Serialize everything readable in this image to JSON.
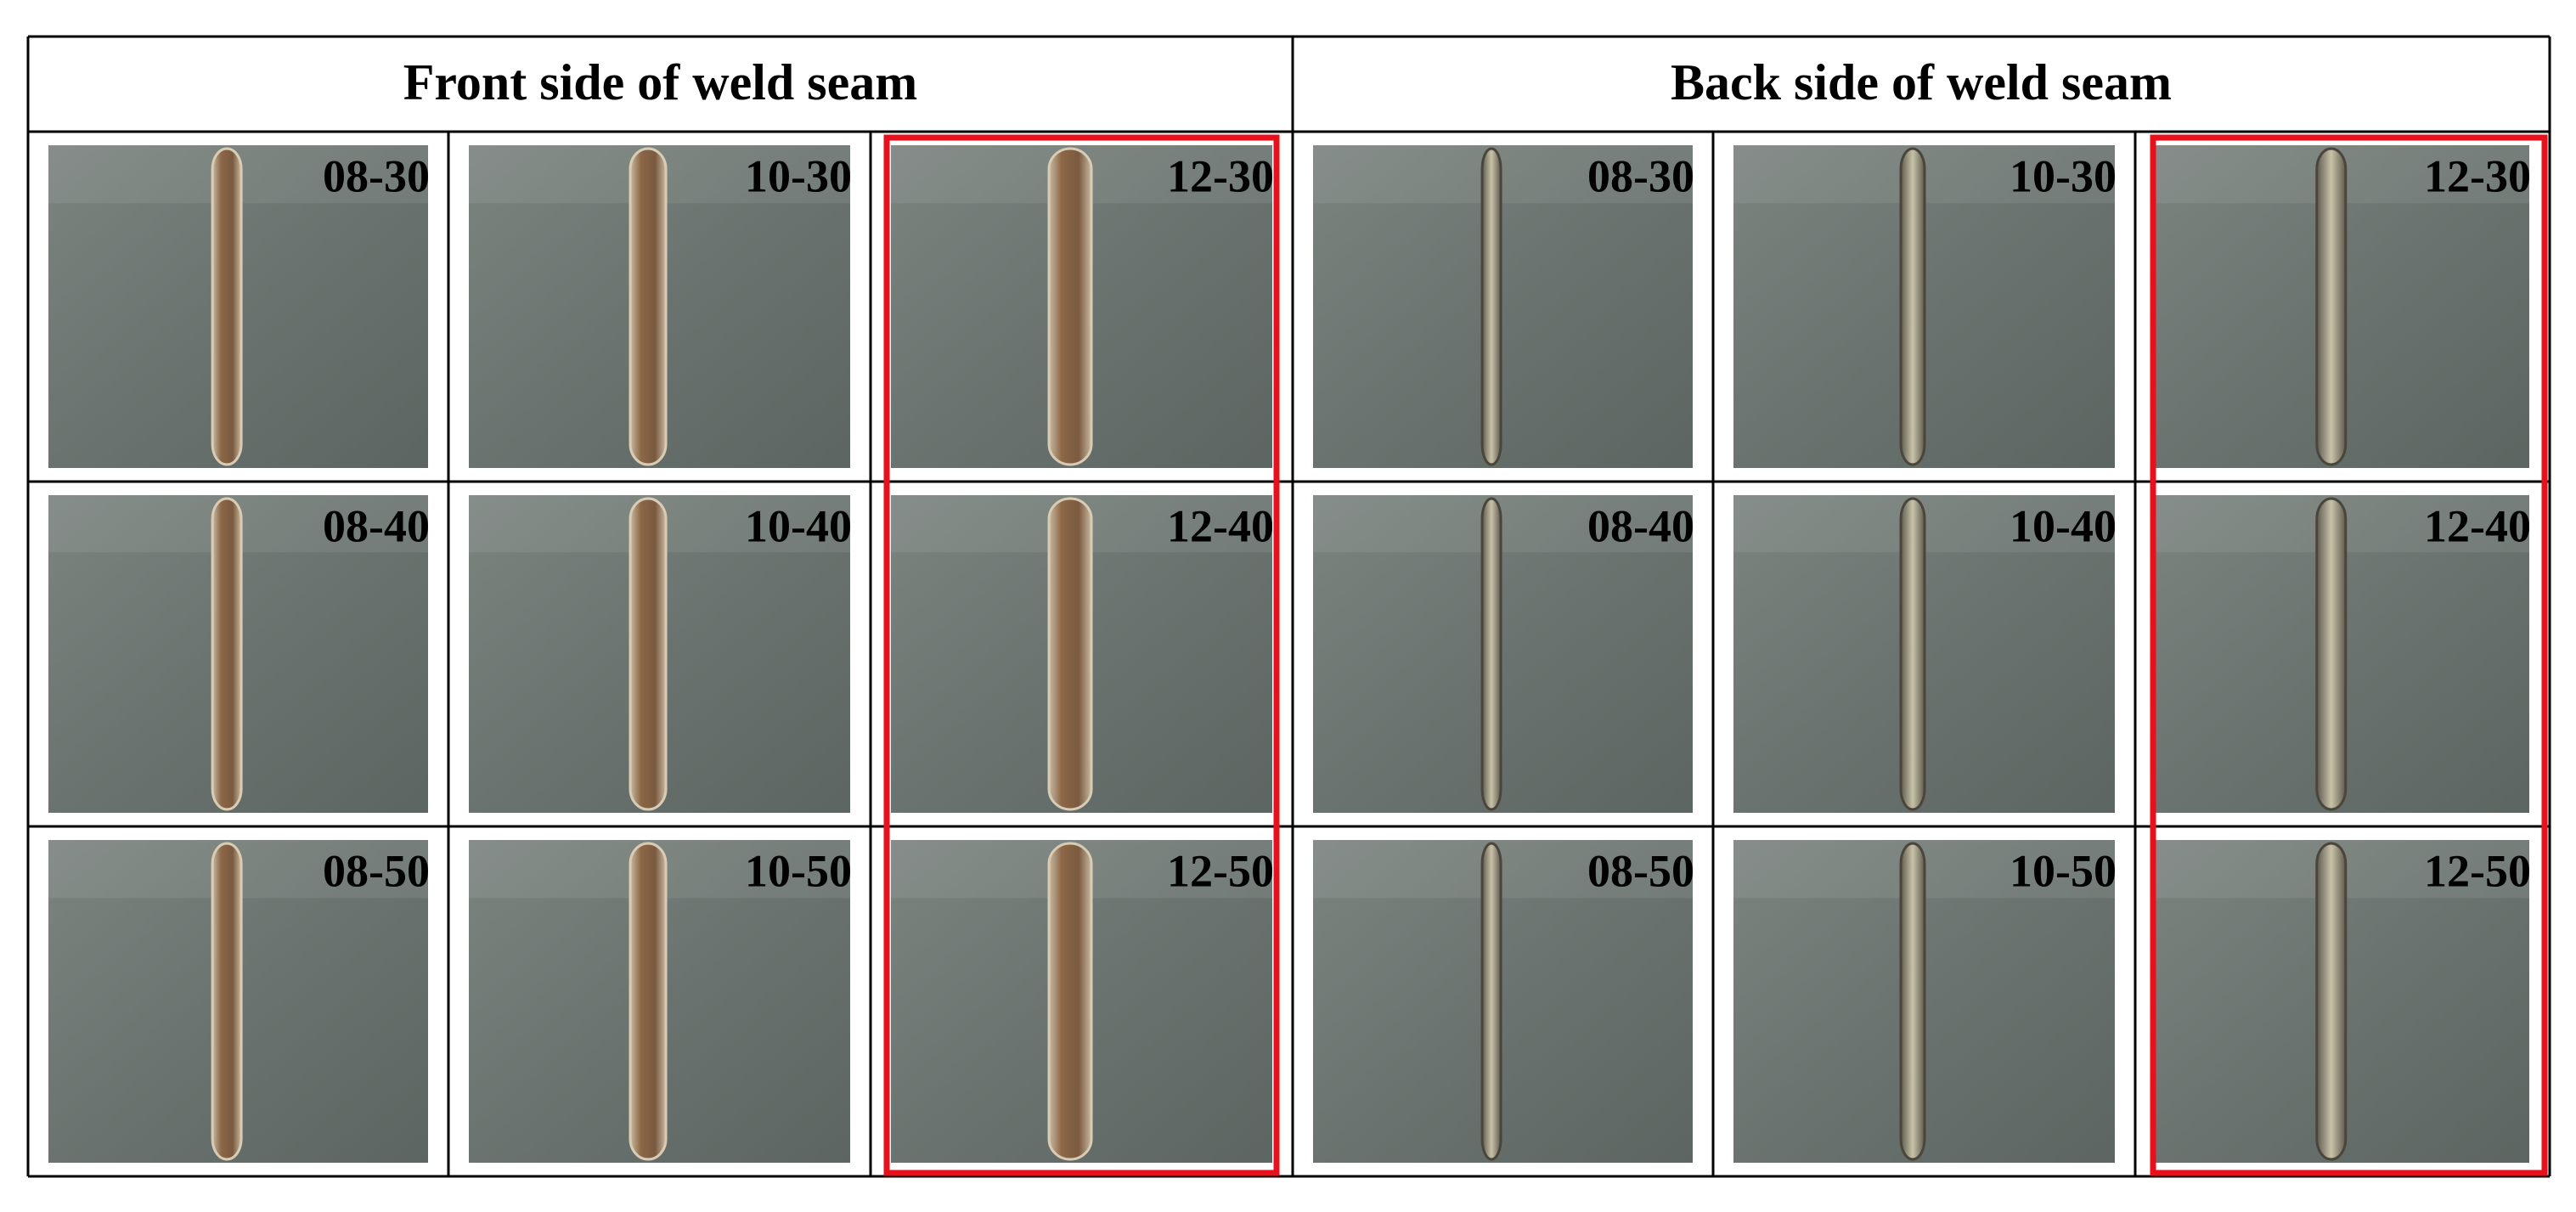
{
  "header": {
    "columns": [
      "Front side of weld seam",
      "Back side of weld seam"
    ]
  },
  "rows": [
    {
      "cells": [
        "08-30",
        "10-30",
        "12-30",
        "08-30",
        "10-30",
        "12-30"
      ]
    },
    {
      "cells": [
        "08-40",
        "10-40",
        "12-40",
        "08-40",
        "10-40",
        "12-40"
      ]
    },
    {
      "cells": [
        "08-50",
        "10-50",
        "12-50",
        "08-50",
        "10-50",
        "12-50"
      ]
    }
  ]
}
